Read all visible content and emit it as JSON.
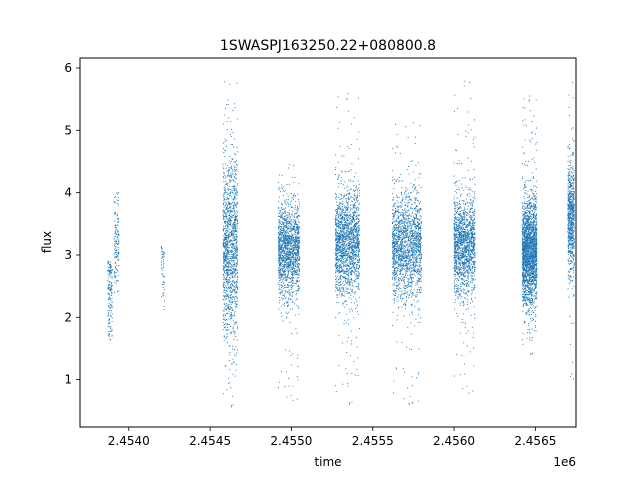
{
  "chart_data": {
    "type": "scatter",
    "title": "1SWASPJ163250.22+080800.8",
    "xlabel": "time",
    "ylabel": "flux",
    "x_offset_label": "1e6",
    "xlim": [
      2.4537,
      2.45675
    ],
    "ylim": [
      0.24,
      6.16
    ],
    "x_ticks": [
      2.454,
      2.4545,
      2.455,
      2.4555,
      2.456,
      2.4565
    ],
    "x_tick_labels": [
      "2.4540",
      "2.4545",
      "2.4550",
      "2.4555",
      "2.4560",
      "2.4565"
    ],
    "y_ticks": [
      1,
      2,
      3,
      4,
      5,
      6
    ],
    "y_tick_labels": [
      "1",
      "2",
      "3",
      "4",
      "5",
      "6"
    ],
    "grid": false,
    "legend": "none",
    "marker_color": "#1f77b4",
    "series": [
      {
        "observing_seasons": [
          {
            "x_start": 2.45387,
            "x_end": 2.4539,
            "y_center": 2.4,
            "y_spread": 0.45,
            "y_min": 1.6,
            "y_max": 2.9,
            "density": 160
          },
          {
            "x_start": 2.45391,
            "x_end": 2.45394,
            "y_center": 3.2,
            "y_spread": 0.4,
            "y_min": 2.4,
            "y_max": 4.0,
            "density": 140
          },
          {
            "x_start": 2.4542,
            "x_end": 2.45422,
            "y_center": 2.8,
            "y_spread": 0.35,
            "y_min": 2.1,
            "y_max": 3.15,
            "density": 50
          },
          {
            "x_start": 2.45458,
            "x_end": 2.45467,
            "y_center": 3.1,
            "y_spread": 0.7,
            "y_min": 0.5,
            "y_max": 5.9,
            "density": 1300
          },
          {
            "x_start": 2.45492,
            "x_end": 2.45505,
            "y_center": 3.1,
            "y_spread": 0.38,
            "y_min": 0.6,
            "y_max": 4.5,
            "density": 1500
          },
          {
            "x_start": 2.45527,
            "x_end": 2.45542,
            "y_center": 3.2,
            "y_spread": 0.42,
            "y_min": 0.55,
            "y_max": 5.65,
            "density": 1700
          },
          {
            "x_start": 2.45562,
            "x_end": 2.4558,
            "y_center": 3.15,
            "y_spread": 0.42,
            "y_min": 0.55,
            "y_max": 5.2,
            "density": 1700
          },
          {
            "x_start": 2.456,
            "x_end": 2.45613,
            "y_center": 3.15,
            "y_spread": 0.4,
            "y_min": 0.7,
            "y_max": 5.85,
            "density": 1500
          },
          {
            "x_start": 2.45642,
            "x_end": 2.45651,
            "y_center": 3.05,
            "y_spread": 0.42,
            "y_min": 1.35,
            "y_max": 5.6,
            "density": 2200
          },
          {
            "x_start": 2.4567,
            "x_end": 2.45674,
            "y_center": 3.6,
            "y_spread": 0.45,
            "y_min": 0.9,
            "y_max": 5.85,
            "density": 700
          }
        ]
      }
    ]
  }
}
